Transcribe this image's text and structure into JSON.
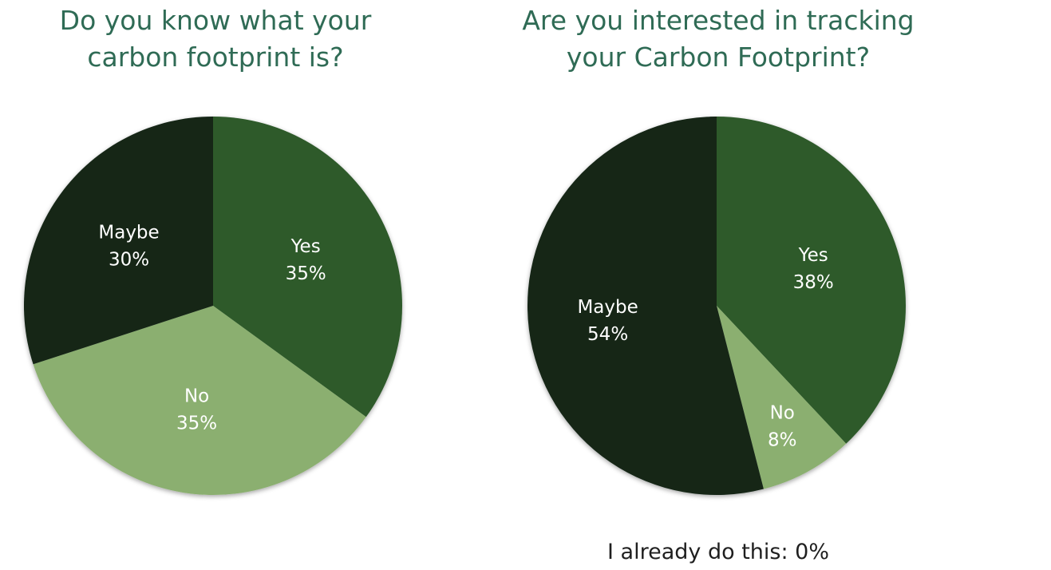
{
  "chart_data": [
    {
      "type": "pie",
      "title": [
        "Do you know what your",
        "carbon footprint is?"
      ],
      "slices": [
        {
          "label": "Yes",
          "value": 35,
          "display": "35%",
          "color": "#2e5a2c"
        },
        {
          "label": "No",
          "value": 35,
          "display": "35%",
          "color": "#8baf6f"
        },
        {
          "label": "Maybe",
          "value": 30,
          "display": "30%",
          "color": "#132619"
        }
      ]
    },
    {
      "type": "pie",
      "title": [
        "Are you interested in tracking",
        "your Carbon Footprint?"
      ],
      "slices": [
        {
          "label": "Yes",
          "value": 38,
          "display": "38%",
          "color": "#2e5a2c"
        },
        {
          "label": "No",
          "value": 8,
          "display": "8%",
          "color": "#8baf6f"
        },
        {
          "label": "Maybe",
          "value": 54,
          "display": "54%",
          "color": "#132619"
        }
      ],
      "note": "I already do this: 0%"
    }
  ]
}
